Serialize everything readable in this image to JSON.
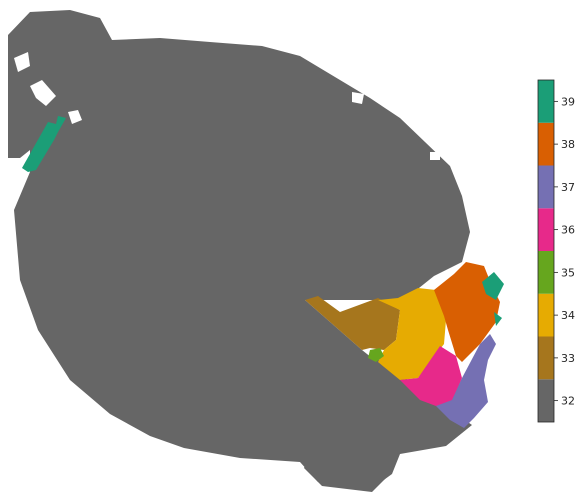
{
  "chart_data": {
    "type": "heatmap",
    "title": "",
    "xlabel": "",
    "ylabel": "",
    "colormap": "Dark2 (discrete)",
    "colorbar": {
      "orientation": "vertical",
      "position": "right",
      "range": [
        31.5,
        39.5
      ],
      "ticks": [
        32,
        33,
        34,
        35,
        36,
        37,
        38,
        39
      ],
      "tick_labels": [
        "32",
        "33",
        "34",
        "35",
        "36",
        "37",
        "38",
        "39"
      ],
      "colors": [
        "#666666",
        "#a6761d",
        "#e6ab02",
        "#66a61e",
        "#e7298a",
        "#7570b3",
        "#d95f02",
        "#1b9e77"
      ]
    },
    "region_values": [
      {
        "value": 32,
        "description": "main body"
      },
      {
        "value": 33,
        "description": "wedge at lower right of body"
      },
      {
        "value": 34,
        "description": "band right of wedge"
      },
      {
        "value": 35,
        "description": "small patch"
      },
      {
        "value": 36,
        "description": "lower-right band"
      },
      {
        "value": 37,
        "description": "outer lower-right band"
      },
      {
        "value": 38,
        "description": "upper-right band"
      },
      {
        "value": 39,
        "description": "edge patches and upper-left strip"
      }
    ],
    "grid": false,
    "axes_visible": false
  }
}
